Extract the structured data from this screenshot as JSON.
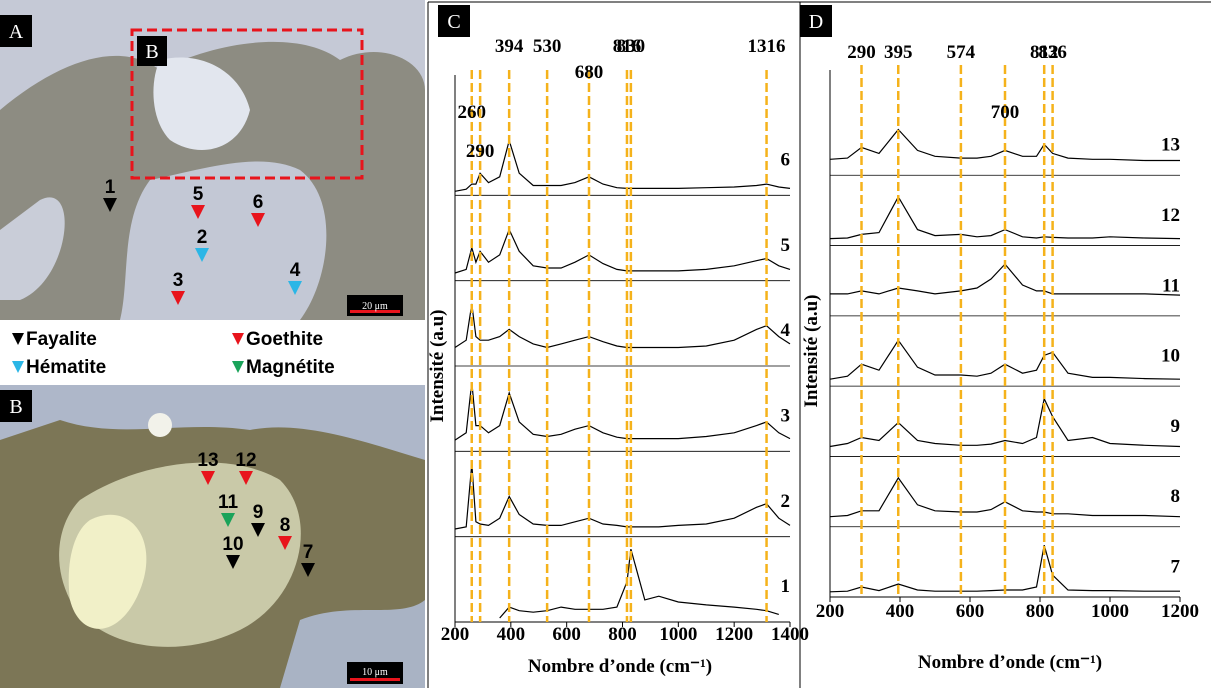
{
  "figure": {
    "panel_a": {
      "label": "A",
      "inset_label": "B",
      "scale_bar": "20 μm",
      "markers": [
        {
          "label": "1",
          "color": "#000000"
        },
        {
          "label": "5",
          "color": "#e8141c"
        },
        {
          "label": "6",
          "color": "#e8141c"
        },
        {
          "label": "2",
          "color": "#2bb6e6"
        },
        {
          "label": "3",
          "color": "#e8141c"
        },
        {
          "label": "4",
          "color": "#2bb6e6"
        }
      ]
    },
    "legend": [
      {
        "name": "Fayalite",
        "color": "#000000"
      },
      {
        "name": "Goethite",
        "color": "#e8141c"
      },
      {
        "name": "Hématite",
        "color": "#2bb6e6"
      },
      {
        "name": "Magnétite",
        "color": "#1aa35a"
      }
    ],
    "panel_b": {
      "label": "B",
      "scale_bar": "10 μm",
      "markers": [
        {
          "label": "13",
          "color": "#e8141c"
        },
        {
          "label": "12",
          "color": "#e8141c"
        },
        {
          "label": "11",
          "color": "#1aa35a"
        },
        {
          "label": "9",
          "color": "#000000"
        },
        {
          "label": "8",
          "color": "#e8141c"
        },
        {
          "label": "10",
          "color": "#000000"
        },
        {
          "label": "7",
          "color": "#000000"
        }
      ]
    }
  },
  "chart_data": [
    {
      "type": "line",
      "panel_label": "C",
      "xlabel": "Nombre d’onde (cm⁻¹)",
      "ylabel": "Intensité (a.u)",
      "xlim": [
        200,
        1400
      ],
      "xticks": [
        200,
        400,
        600,
        800,
        1000,
        1200,
        1400
      ],
      "peaks": [
        260,
        290,
        394,
        530,
        680,
        816,
        830,
        1316
      ],
      "peak_color": "#f5b21b",
      "x": [
        200,
        240,
        260,
        275,
        290,
        320,
        360,
        394,
        430,
        480,
        530,
        580,
        630,
        680,
        730,
        780,
        816,
        830,
        880,
        930,
        1000,
        1100,
        1200,
        1280,
        1316,
        1360,
        1400
      ],
      "series": [
        {
          "name": "6",
          "color": "#000000",
          "values": [
            0,
            0.03,
            0.1,
            0.1,
            0.25,
            0.12,
            0.2,
            0.7,
            0.25,
            0.08,
            0.08,
            0.08,
            0.12,
            0.2,
            0.1,
            0.05,
            0.04,
            0.04,
            0.04,
            0.04,
            0.04,
            0.05,
            0.06,
            0.08,
            0.1,
            0.06,
            0.04
          ]
        },
        {
          "name": "5",
          "color": "#000000",
          "values": [
            0.05,
            0.1,
            0.4,
            0.2,
            0.35,
            0.2,
            0.3,
            0.65,
            0.35,
            0.15,
            0.12,
            0.12,
            0.2,
            0.3,
            0.18,
            0.1,
            0.08,
            0.08,
            0.08,
            0.08,
            0.08,
            0.1,
            0.15,
            0.22,
            0.25,
            0.15,
            0.1
          ]
        },
        {
          "name": "4",
          "color": "#000000",
          "values": [
            0.2,
            0.3,
            0.8,
            0.35,
            0.3,
            0.3,
            0.35,
            0.45,
            0.35,
            0.25,
            0.2,
            0.25,
            0.3,
            0.35,
            0.28,
            0.22,
            0.2,
            0.2,
            0.2,
            0.2,
            0.2,
            0.22,
            0.3,
            0.45,
            0.5,
            0.35,
            0.25
          ]
        },
        {
          "name": "3",
          "color": "#000000",
          "values": [
            0.1,
            0.2,
            0.9,
            0.3,
            0.3,
            0.2,
            0.3,
            0.75,
            0.35,
            0.18,
            0.15,
            0.18,
            0.25,
            0.3,
            0.2,
            0.14,
            0.12,
            0.12,
            0.12,
            0.12,
            0.12,
            0.15,
            0.2,
            0.3,
            0.35,
            0.2,
            0.12
          ]
        },
        {
          "name": "2",
          "color": "#000000",
          "values": [
            0.05,
            0.08,
            0.95,
            0.15,
            0.12,
            0.1,
            0.2,
            0.5,
            0.25,
            0.12,
            0.1,
            0.1,
            0.15,
            0.2,
            0.12,
            0.1,
            0.08,
            0.08,
            0.08,
            0.08,
            0.1,
            0.12,
            0.2,
            0.35,
            0.4,
            0.2,
            0.1
          ]
        },
        {
          "name": "1",
          "color": "#000000",
          "values": [
            null,
            null,
            null,
            null,
            null,
            null,
            0,
            0.15,
            0.1,
            0.08,
            0.1,
            0.15,
            0.12,
            0.12,
            0.12,
            0.15,
            0.5,
            0.95,
            0.25,
            0.3,
            0.22,
            0.18,
            0.15,
            0.12,
            0.1,
            0.05,
            null
          ]
        }
      ]
    },
    {
      "type": "line",
      "panel_label": "D",
      "xlabel": "Nombre d’onde (cm⁻¹)",
      "ylabel": "Intensité (a.u)",
      "xlim": [
        200,
        1200
      ],
      "xticks": [
        200,
        400,
        600,
        800,
        1000,
        1200
      ],
      "peaks": [
        290,
        395,
        574,
        700,
        812,
        836
      ],
      "peak_color": "#f5b21b",
      "x": [
        200,
        250,
        290,
        340,
        395,
        450,
        500,
        574,
        620,
        660,
        700,
        750,
        790,
        812,
        836,
        880,
        950,
        1000,
        1100,
        1200
      ],
      "series": [
        {
          "name": "13",
          "color": "#000000",
          "values": [
            0.2,
            0.22,
            0.4,
            0.3,
            0.7,
            0.35,
            0.25,
            0.22,
            0.22,
            0.25,
            0.35,
            0.25,
            0.25,
            0.45,
            0.3,
            0.22,
            0.2,
            0.2,
            0.18,
            0.18
          ]
        },
        {
          "name": "12",
          "color": "#000000",
          "values": [
            0.05,
            0.06,
            0.12,
            0.15,
            0.75,
            0.2,
            0.1,
            0.12,
            0.08,
            0.1,
            0.2,
            0.08,
            0.06,
            0.08,
            0.07,
            0.06,
            0.06,
            0.08,
            0.06,
            0.05
          ]
        },
        {
          "name": "11",
          "color": "#000000",
          "values": [
            0.3,
            0.3,
            0.35,
            0.3,
            0.4,
            0.35,
            0.3,
            0.35,
            0.4,
            0.55,
            0.8,
            0.45,
            0.35,
            0.35,
            0.3,
            0.3,
            0.3,
            0.3,
            0.3,
            0.28
          ]
        },
        {
          "name": "10",
          "color": "#000000",
          "values": [
            0.05,
            0.1,
            0.3,
            0.2,
            0.7,
            0.25,
            0.12,
            0.12,
            0.1,
            0.15,
            0.3,
            0.15,
            0.2,
            0.45,
            0.5,
            0.15,
            0.08,
            0.08,
            0.06,
            0.05
          ]
        },
        {
          "name": "9",
          "color": "#000000",
          "values": [
            0.1,
            0.15,
            0.25,
            0.2,
            0.5,
            0.2,
            0.15,
            0.12,
            0.12,
            0.14,
            0.2,
            0.15,
            0.25,
            0.9,
            0.6,
            0.2,
            0.25,
            0.15,
            0.12,
            0.1
          ]
        },
        {
          "name": "8",
          "color": "#000000",
          "values": [
            0.1,
            0.12,
            0.2,
            0.2,
            0.75,
            0.3,
            0.2,
            0.18,
            0.18,
            0.22,
            0.35,
            0.2,
            0.18,
            0.18,
            0.15,
            0.15,
            0.12,
            0.12,
            0.12,
            0.1
          ]
        },
        {
          "name": "7",
          "color": "#000000",
          "values": [
            0.02,
            0.03,
            0.1,
            0.04,
            0.15,
            0.05,
            0.03,
            0.03,
            0.03,
            0.04,
            0.05,
            0.05,
            0.1,
            0.8,
            0.3,
            0.05,
            0.04,
            0.04,
            0.03,
            0.03
          ]
        }
      ]
    }
  ]
}
